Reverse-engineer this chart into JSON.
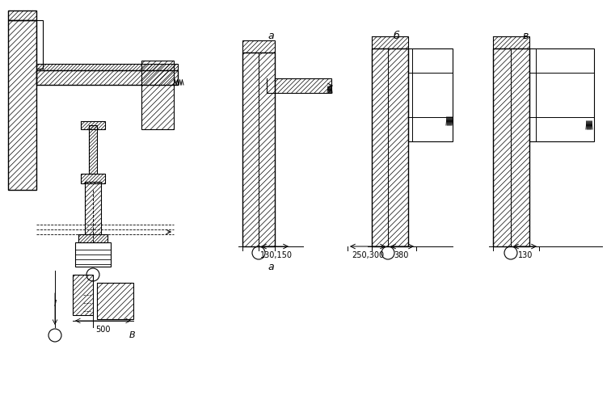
{
  "bg_color": "#ffffff",
  "line_color": "#000000",
  "label_a": "а",
  "label_b": "б",
  "label_v": "в",
  "dim_a": "130,150",
  "dim_b1": "250,300",
  "dim_b2": "380",
  "dim_v": "130",
  "dim_plan": "500",
  "dim_plan2": "В",
  "dim_plan3": "l"
}
